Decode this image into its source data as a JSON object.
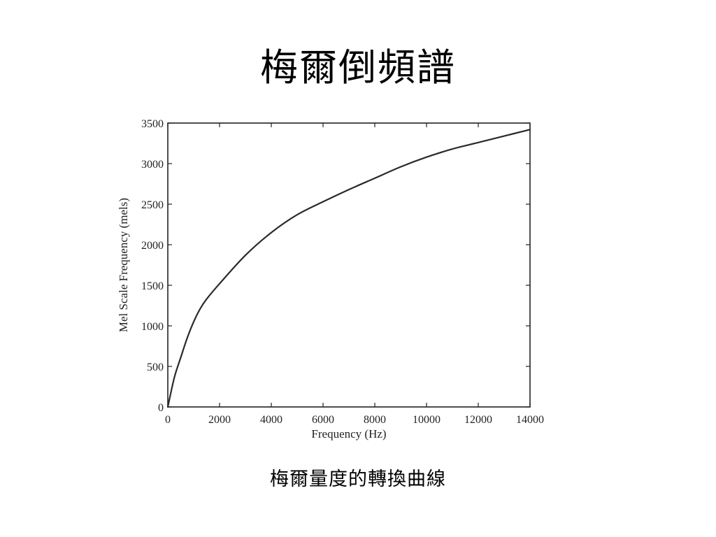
{
  "slide": {
    "title": "梅爾倒頻譜",
    "caption": "梅爾量度的轉換曲線"
  },
  "chart_data": {
    "type": "line",
    "title": "",
    "xlabel": "Frequency (Hz)",
    "ylabel": "Mel Scale Frequency (mels)",
    "xlim": [
      0,
      14000
    ],
    "ylim": [
      0,
      3500
    ],
    "xticks": [
      0,
      2000,
      4000,
      6000,
      8000,
      10000,
      12000,
      14000
    ],
    "yticks": [
      0,
      500,
      1000,
      1500,
      2000,
      2500,
      3000,
      3500
    ],
    "grid": false,
    "series": [
      {
        "x": [
          0,
          250,
          500,
          750,
          1000,
          1250,
          1500,
          2000,
          3000,
          4000,
          5000,
          6000,
          7000,
          8000,
          9000,
          10000,
          11000,
          12000,
          13000,
          14000
        ],
        "values": [
          0,
          360,
          610,
          850,
          1050,
          1210,
          1330,
          1520,
          1870,
          2150,
          2370,
          2530,
          2680,
          2820,
          2960,
          3080,
          3180,
          3260,
          3340,
          3420
        ]
      }
    ]
  }
}
